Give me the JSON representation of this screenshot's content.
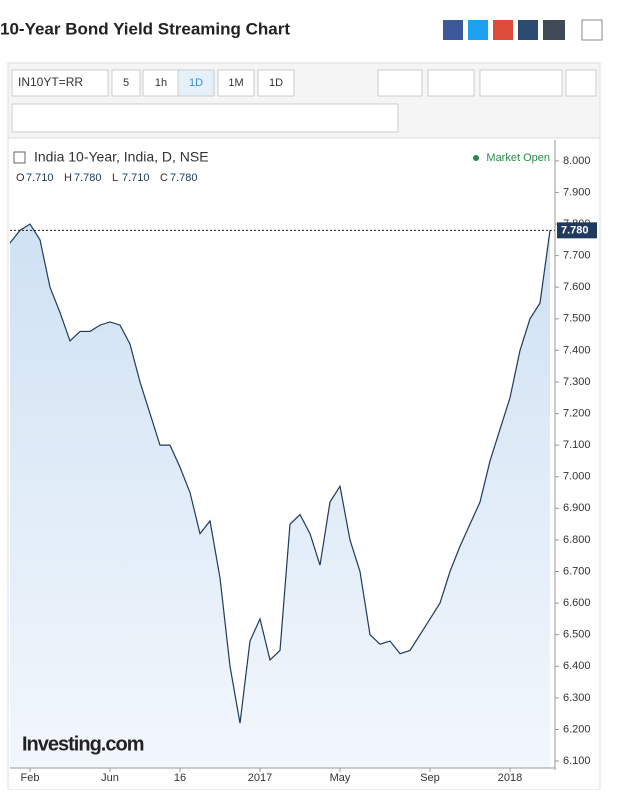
{
  "header": {
    "title": "10-Year Bond Yield Streaming Chart"
  },
  "toolbar": {
    "symbol": "IN10YT=RR",
    "intervals": [
      "5",
      "1h",
      "1D",
      "1M",
      "1D"
    ]
  },
  "chart_data": {
    "type": "line",
    "title": "India 10-Year, India, D, NSE",
    "status": "Market Open",
    "ohlc": [
      {
        "key": "O",
        "text": "7.710"
      },
      {
        "key": "H",
        "text": "7.780"
      },
      {
        "key": "L",
        "text": "7.710"
      },
      {
        "key": "C",
        "text": "7.780"
      }
    ],
    "last_price": {
      "value": 7.78,
      "label": "7.780"
    },
    "watermark": "Investing.com",
    "color": "#1f3a5c",
    "categories": [
      null,
      null,
      "Feb",
      null,
      null,
      null,
      null,
      null,
      null,
      null,
      "Jun",
      null,
      null,
      null,
      null,
      null,
      null,
      "16",
      null,
      null,
      null,
      null,
      null,
      null,
      null,
      "2017",
      null,
      null,
      null,
      null,
      null,
      null,
      null,
      "May",
      null,
      null,
      null,
      null,
      null,
      null,
      null,
      null,
      "Sep",
      null,
      null,
      null,
      null,
      null,
      null,
      null,
      "2018",
      null,
      null,
      null,
      null
    ],
    "values": [
      7.74,
      7.78,
      7.8,
      7.75,
      7.6,
      7.52,
      7.43,
      7.46,
      7.46,
      7.48,
      7.49,
      7.48,
      7.42,
      7.3,
      7.2,
      7.1,
      7.1,
      7.03,
      6.95,
      6.82,
      6.86,
      6.68,
      6.4,
      6.22,
      6.48,
      6.55,
      6.42,
      6.45,
      6.85,
      6.88,
      6.82,
      6.72,
      6.92,
      6.97,
      6.8,
      6.7,
      6.5,
      6.47,
      6.48,
      6.44,
      6.45,
      6.5,
      6.55,
      6.6,
      6.7,
      6.78,
      6.85,
      6.92,
      7.05,
      7.15,
      7.25,
      7.4,
      7.5,
      7.55,
      7.78
    ],
    "ylim": [
      6.078,
      8.066
    ],
    "yticks": [
      {
        "value": 6.1,
        "label": "6.100"
      },
      {
        "value": 6.2,
        "label": "6.200"
      },
      {
        "value": 6.3,
        "label": "6.300"
      },
      {
        "value": 6.4,
        "label": "6.400"
      },
      {
        "value": 6.5,
        "label": "6.500"
      },
      {
        "value": 6.6,
        "label": "6.600"
      },
      {
        "value": 6.7,
        "label": "6.700"
      },
      {
        "value": 6.8,
        "label": "6.800"
      },
      {
        "value": 6.9,
        "label": "6.900"
      },
      {
        "value": 7,
        "label": "7.000"
      },
      {
        "value": 7.1,
        "label": "7.100"
      },
      {
        "value": 7.2,
        "label": "7.200"
      },
      {
        "value": 7.3,
        "label": "7.300"
      },
      {
        "value": 7.4,
        "label": "7.400"
      },
      {
        "value": 7.5,
        "label": "7.500"
      },
      {
        "value": 7.6,
        "label": "7.600"
      },
      {
        "value": 7.7,
        "label": "7.700"
      },
      {
        "value": 7.8,
        "label": "7.800"
      },
      {
        "value": 7.9,
        "label": "7.900"
      },
      {
        "value": 8,
        "label": "8.000"
      }
    ]
  }
}
